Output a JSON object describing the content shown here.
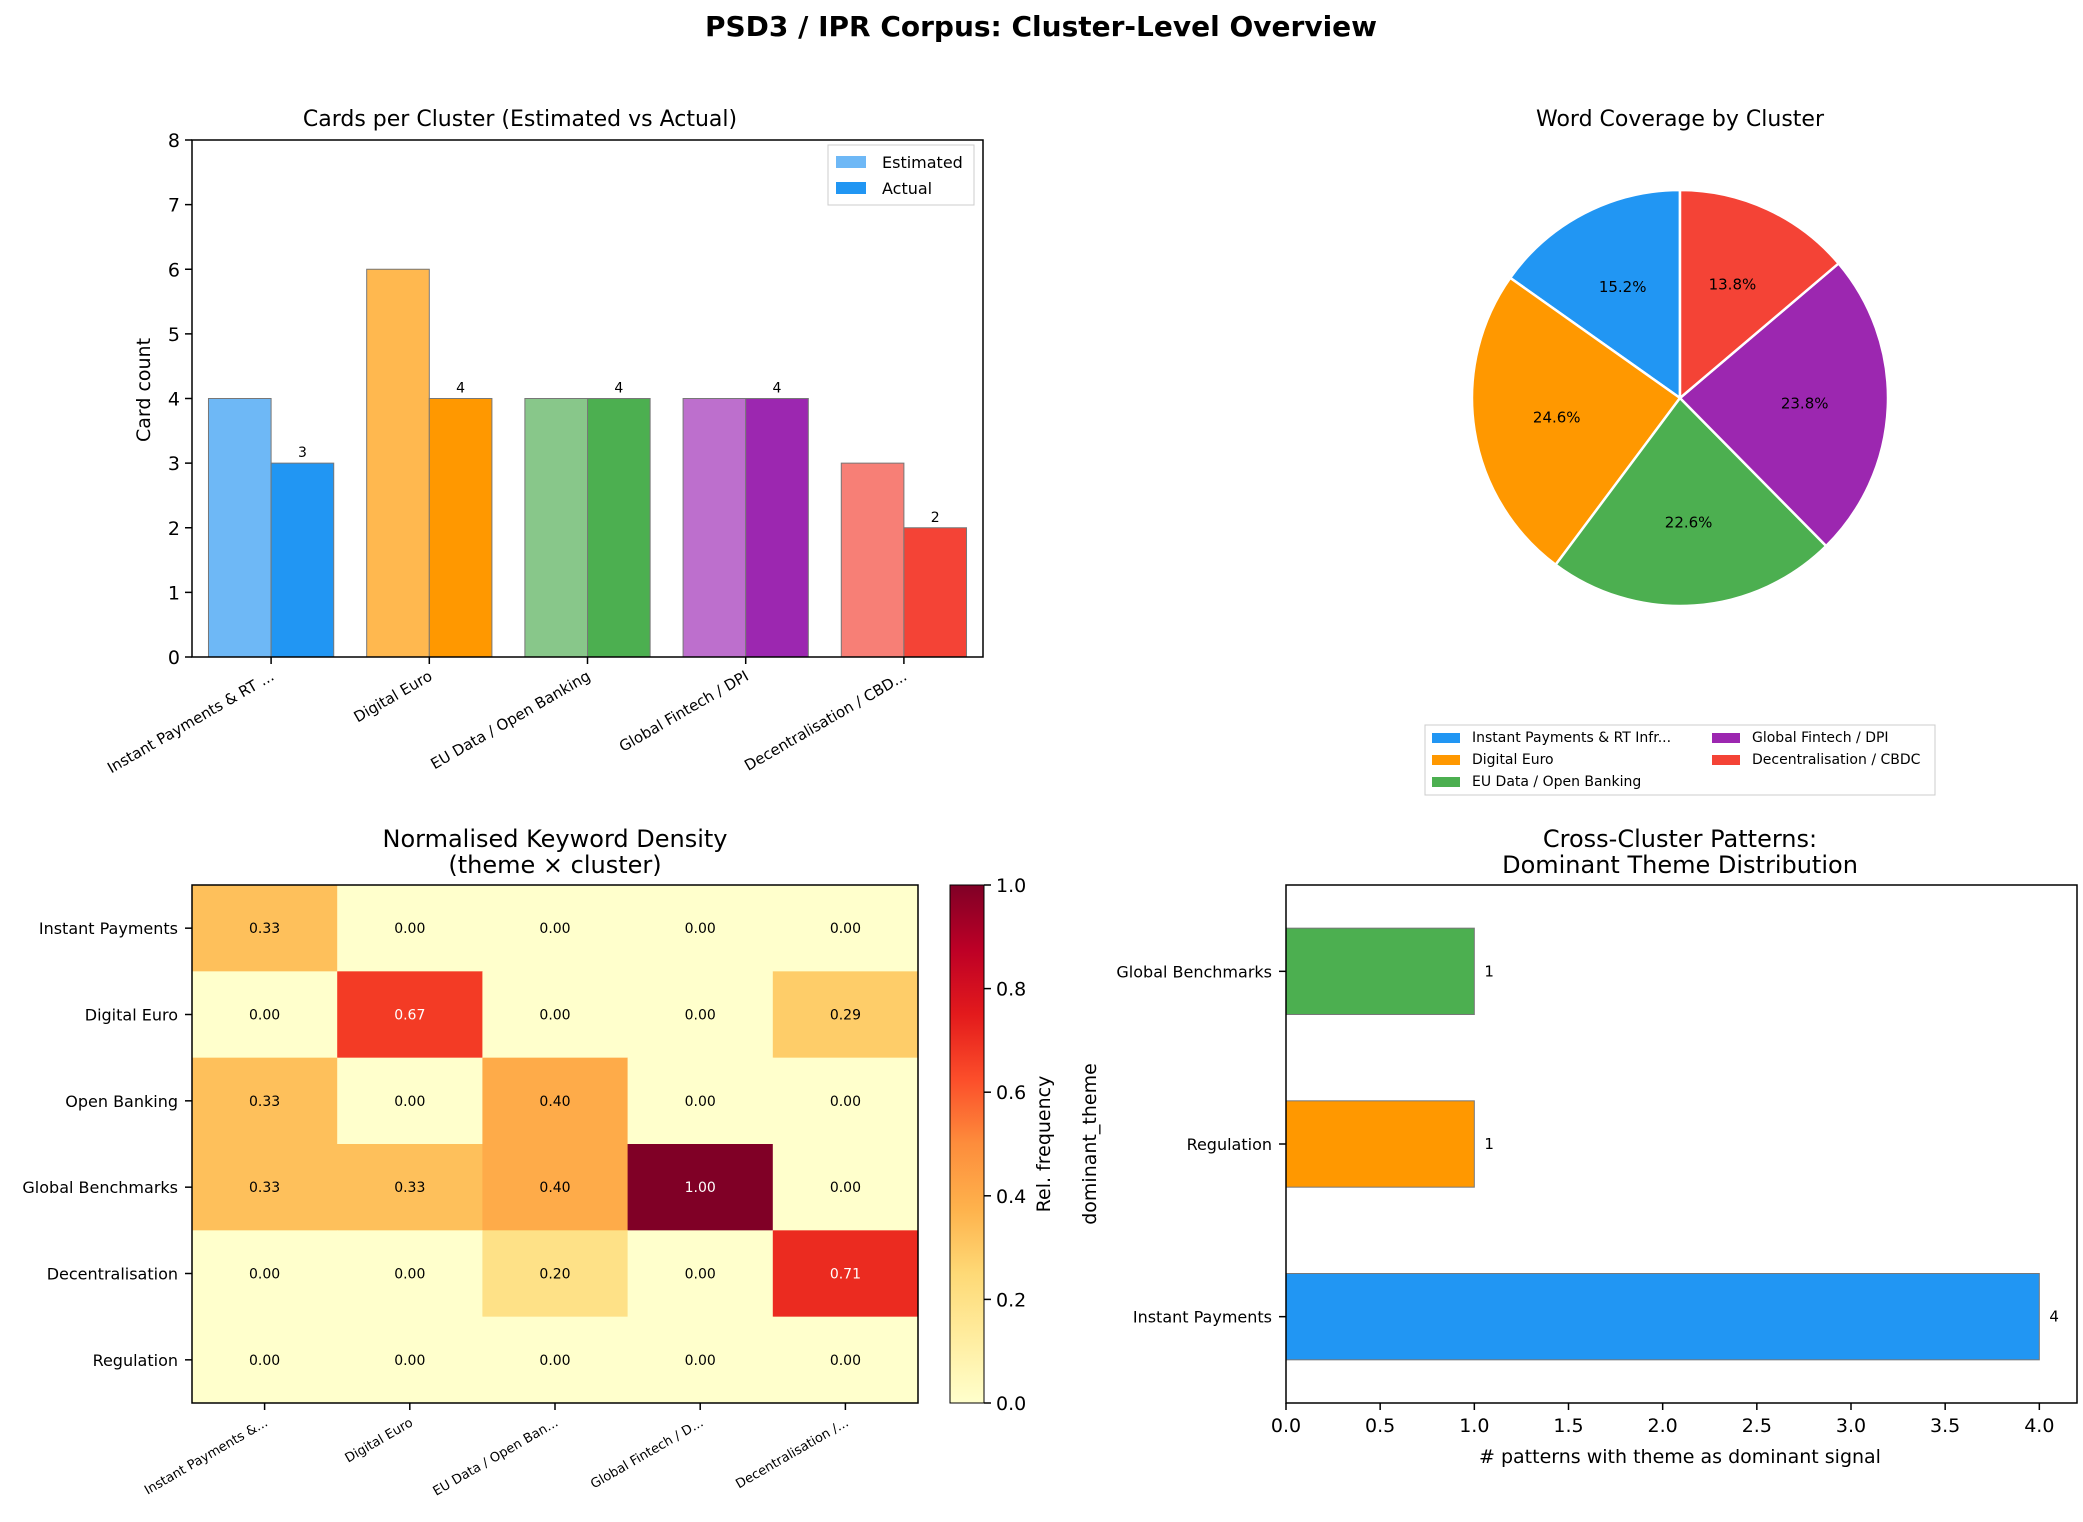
{
  "suptitle": "PSD3 / IPR Corpus: Cluster-Level Overview",
  "colors": {
    "blue": "#2196f3",
    "orange": "#ff9800",
    "green": "#4caf50",
    "purple": "#9c27b0",
    "red": "#f44336",
    "blue_light": "#6eb8f6",
    "orange_light": "#ffb84f",
    "green_light": "#88c78a",
    "purple_light": "#bd6fcd",
    "red_light": "#f77f76"
  },
  "chart_data": [
    {
      "type": "bar",
      "title": "Cards per Cluster (Estimated vs Actual)",
      "xlabel": "",
      "ylabel": "Card count",
      "ylim": [
        0,
        8
      ],
      "yticks": [
        "0",
        "1",
        "2",
        "3",
        "4",
        "5",
        "6",
        "7",
        "8"
      ],
      "categories": [
        "Instant Payments & RT ...",
        "Digital Euro",
        "EU Data / Open Banking",
        "Global Fintech / DPI",
        "Decentralisation / CBD..."
      ],
      "series": [
        {
          "name": "Estimated",
          "values": [
            4,
            6,
            4,
            4,
            3
          ]
        },
        {
          "name": "Actual",
          "values": [
            3,
            4,
            4,
            4,
            2
          ]
        }
      ],
      "data_labels": [
        "3",
        "4",
        "4",
        "4",
        "2"
      ],
      "legend": "top-right",
      "grid": false
    },
    {
      "type": "pie",
      "title": "Word Coverage by Cluster",
      "slices": [
        {
          "label": "Instant Payments & RT Infr...",
          "value": 15.2,
          "text": "15.2%"
        },
        {
          "label": "Digital Euro",
          "value": 24.6,
          "text": "24.6%"
        },
        {
          "label": "EU Data / Open Banking",
          "value": 22.6,
          "text": "22.6%"
        },
        {
          "label": "Global Fintech / DPI",
          "value": 23.8,
          "text": "23.8%"
        },
        {
          "label": "Decentralisation / CBDC",
          "value": 13.8,
          "text": "13.8%"
        }
      ],
      "start_angle": 90,
      "direction": "counterclockwise",
      "legend": "bottom"
    },
    {
      "type": "heatmap",
      "title": "Normalised Keyword Density",
      "subtitle": "(theme × cluster)",
      "rows": [
        "Instant Payments",
        "Digital Euro",
        "Open Banking",
        "Global Benchmarks",
        "Decentralisation",
        "Regulation"
      ],
      "columns": [
        "Instant Payments &...",
        "Digital Euro",
        "EU Data / Open Ban...",
        "Global Fintech / D...",
        "Decentralisation /..."
      ],
      "values": [
        [
          0.33,
          0.0,
          0.0,
          0.0,
          0.0
        ],
        [
          0.0,
          0.67,
          0.0,
          0.0,
          0.29
        ],
        [
          0.33,
          0.0,
          0.4,
          0.0,
          0.0
        ],
        [
          0.33,
          0.33,
          0.4,
          1.0,
          0.0
        ],
        [
          0.0,
          0.0,
          0.2,
          0.0,
          0.71
        ],
        [
          0.0,
          0.0,
          0.0,
          0.0,
          0.0
        ]
      ],
      "labels": [
        [
          "0.33",
          "0.00",
          "0.00",
          "0.00",
          "0.00"
        ],
        [
          "0.00",
          "0.67",
          "0.00",
          "0.00",
          "0.29"
        ],
        [
          "0.33",
          "0.00",
          "0.40",
          "0.00",
          "0.00"
        ],
        [
          "0.33",
          "0.33",
          "0.40",
          "1.00",
          "0.00"
        ],
        [
          "0.00",
          "0.00",
          "0.20",
          "0.00",
          "0.71"
        ],
        [
          "0.00",
          "0.00",
          "0.00",
          "0.00",
          "0.00"
        ]
      ],
      "colormap": "YlOrRd",
      "colorbar": {
        "label": "Rel. frequency",
        "range": [
          0,
          1
        ],
        "ticks": [
          "0.0",
          "0.2",
          "0.4",
          "0.6",
          "0.8",
          "1.0"
        ]
      }
    },
    {
      "type": "bar",
      "orientation": "horizontal",
      "title": "Cross-Cluster Patterns:",
      "subtitle": "Dominant Theme Distribution",
      "xlabel": "# patterns with theme as dominant signal",
      "ylabel": "dominant_theme",
      "xlim": [
        0,
        4.2
      ],
      "xticks": [
        "0.0",
        "0.5",
        "1.0",
        "1.5",
        "2.0",
        "2.5",
        "3.0",
        "3.5",
        "4.0"
      ],
      "categories": [
        "Instant Payments",
        "Regulation",
        "Global Benchmarks"
      ],
      "values": [
        4,
        1,
        1
      ],
      "data_labels": [
        "4",
        "1",
        "1"
      ]
    }
  ]
}
